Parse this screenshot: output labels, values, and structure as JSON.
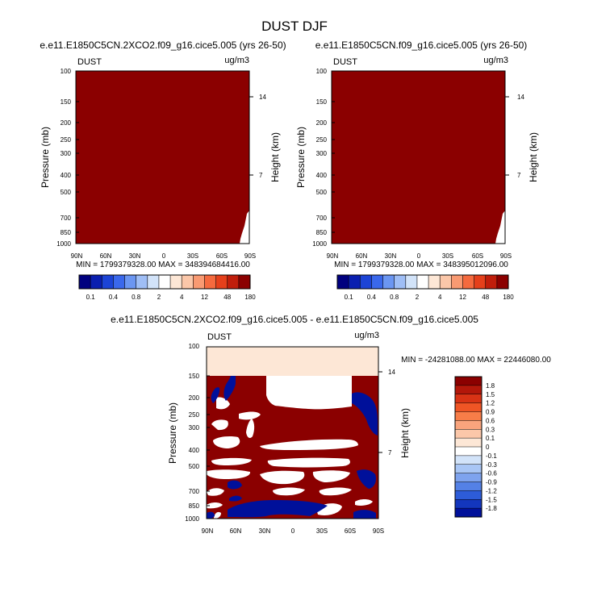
{
  "title": "DUST DJF",
  "colors": {
    "dark_red": "#8b0000",
    "pale": "#fde7d6",
    "blue": "#00109a",
    "white": "#ffffff",
    "frame": "#000000"
  },
  "abs_scale": {
    "labels": [
      "0.1",
      "0.4",
      "0.8",
      "2",
      "4",
      "12",
      "48",
      "180"
    ],
    "colors": [
      "#00007f",
      "#0a1fb0",
      "#1c44d6",
      "#3a68ec",
      "#6b96f2",
      "#9fbef6",
      "#d2e3f9",
      "#ffffff",
      "#fde7d6",
      "#fbc7a9",
      "#f99a72",
      "#f56a3e",
      "#e5401b",
      "#c01e0b",
      "#8b0000"
    ]
  },
  "diff_scale": {
    "labels": [
      "1.8",
      "1.5",
      "1.2",
      "0.9",
      "0.6",
      "0.3",
      "0.1",
      "0",
      "-0.1",
      "-0.3",
      "-0.6",
      "-0.9",
      "-1.2",
      "-1.5",
      "-1.8"
    ],
    "colors": [
      "#8b0000",
      "#b3170a",
      "#d83315",
      "#ef5525",
      "#f77d48",
      "#f9a47d",
      "#fbc7a9",
      "#fde7d6",
      "#ffffff",
      "#d2e3f9",
      "#a9c6f5",
      "#7ea3ee",
      "#5481e6",
      "#2d5cd8",
      "#1336bd",
      "#00109a"
    ]
  },
  "chart_data": [
    {
      "type": "heatmap",
      "title": "e.e11.E1850C5CN.2XCO2.f09_g16.cice5.005 (yrs 26-50)",
      "variable": "DUST",
      "units": "ug/m3",
      "ylabel": "Pressure (mb)",
      "y2label": "Height (km)",
      "y_ticks": [
        100,
        150,
        200,
        250,
        300,
        400,
        500,
        700,
        850,
        1000
      ],
      "y_range": [
        100,
        1000
      ],
      "y2_ticks": [
        14,
        7
      ],
      "x_ticks": [
        "90N",
        "60N",
        "30N",
        "0",
        "30S",
        "60S",
        "90S"
      ],
      "stats": "MIN = 1799379328.00  MAX = 348394684416.00",
      "fill": "nearly uniform maximum value (180 bin); small white gap near 90S, 1000-680 mb"
    },
    {
      "type": "heatmap",
      "title": "e.e11.E1850C5CN.f09_g16.cice5.005 (yrs 26-50)",
      "variable": "DUST",
      "units": "ug/m3",
      "ylabel": "Pressure (mb)",
      "y2label": "Height (km)",
      "y_ticks": [
        100,
        150,
        200,
        250,
        300,
        400,
        500,
        700,
        850,
        1000
      ],
      "y_range": [
        100,
        1000
      ],
      "y2_ticks": [
        14,
        7
      ],
      "x_ticks": [
        "90N",
        "60N",
        "30N",
        "0",
        "30S",
        "60S",
        "90S"
      ],
      "stats": "MIN = 1799379328.00  MAX = 348395012096.00",
      "fill": "nearly uniform maximum value (180 bin); small white gap near 90S, 1000-680 mb"
    },
    {
      "type": "heatmap",
      "title": "e.e11.E1850C5CN.2XCO2.f09_g16.cice5.005 - e.e11.E1850C5CN.f09_g16.cice5.005",
      "variable": "DUST",
      "units": "ug/m3",
      "ylabel": "Pressure (mb)",
      "y2label": "Height (km)",
      "y_ticks": [
        100,
        150,
        200,
        250,
        300,
        400,
        500,
        700,
        850,
        1000
      ],
      "y_range": [
        100,
        1000
      ],
      "y2_ticks": [
        14,
        7
      ],
      "x_ticks": [
        "90N",
        "60N",
        "30N",
        "0",
        "30S",
        "60S",
        "90S"
      ],
      "stats": "MIN = -24281088.00  MAX = 22446080.00",
      "fill": "difference field: 0 bin above 150 mb; mostly >1.8 below with white bands and < -1.8 patches"
    }
  ]
}
